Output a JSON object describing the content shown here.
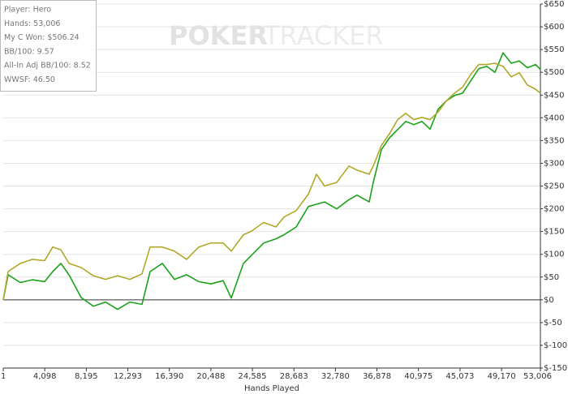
{
  "chart_data": {
    "type": "line",
    "x_label": "Hands Played",
    "watermark_left": "POKER",
    "watermark_right": "TRACKER",
    "info": [
      "Player: Hero",
      "Hands: 53,006",
      "My C Won: $506.24",
      "BB/100: 9.57",
      "All-In Adj BB/100: 8.52",
      "WWSF: 46.50"
    ],
    "x": [
      1,
      481,
      1682,
      2884,
      4085,
      4885,
      5686,
      6487,
      7688,
      8889,
      10090,
      11291,
      12492,
      13693,
      14494,
      15695,
      16896,
      18097,
      19298,
      20499,
      21700,
      22501,
      23702,
      24503,
      25704,
      26905,
      27705,
      28906,
      30107,
      30908,
      31709,
      32910,
      34111,
      34912,
      36113,
      36513,
      37314,
      38115,
      38916,
      39716,
      40517,
      41318,
      42119,
      42919,
      43720,
      44521,
      45322,
      46122,
      46923,
      47724,
      48524,
      49325,
      50126,
      50927,
      51727,
      52528,
      53006
    ],
    "series": [
      {
        "color": "#1aa31a",
        "values": [
          0,
          55,
          38,
          44,
          40,
          62,
          80,
          55,
          5,
          -14,
          -5,
          -21,
          -5,
          -10,
          62,
          80,
          45,
          55,
          40,
          35,
          42,
          4,
          80,
          98,
          125,
          134,
          143,
          160,
          205,
          210,
          215,
          200,
          220,
          230,
          215,
          258,
          330,
          356,
          374,
          392,
          385,
          392,
          375,
          419,
          437,
          449,
          454,
          481,
          508,
          513,
          500,
          543,
          520,
          525,
          510,
          517,
          506.24
        ]
      },
      {
        "color": "#b0a828",
        "values": [
          0,
          62,
          80,
          89,
          86,
          116,
          110,
          80,
          71,
          53,
          45,
          53,
          45,
          57,
          116,
          116,
          107,
          89,
          116,
          125,
          125,
          107,
          143,
          151,
          170,
          160,
          182,
          196,
          232,
          276,
          250,
          258,
          294,
          285,
          276,
          294,
          339,
          365,
          396,
          410,
          396,
          401,
          396,
          413,
          437,
          454,
          467,
          495,
          517,
          517,
          520,
          513,
          490,
          499,
          472,
          463,
          454
        ]
      }
    ],
    "xlim": [
      1,
      53006
    ],
    "xticks": [
      1,
      {
        "value": 4098,
        "label": "4,098"
      },
      {
        "value": 8195,
        "label": "8,195"
      },
      {
        "value": 12293,
        "label": "12,293"
      },
      {
        "value": 16390,
        "label": "16,390"
      },
      {
        "value": 20488,
        "label": "20,488"
      },
      {
        "value": 24585,
        "label": "24,585"
      },
      {
        "value": 28683,
        "label": "28,683"
      },
      {
        "value": 32780,
        "label": "32,780"
      },
      {
        "value": 36878,
        "label": "36,878"
      },
      {
        "value": 40975,
        "label": "40,975"
      },
      {
        "value": 45073,
        "label": "45,073"
      },
      {
        "value": 49170,
        "label": "49,170"
      },
      {
        "value": 53006,
        "label": "53,006"
      }
    ],
    "ylim": [
      -150,
      650
    ],
    "yticks": [
      {
        "value": -150,
        "label": "$-150"
      },
      {
        "value": -100,
        "label": "$-100"
      },
      {
        "value": -50,
        "label": "$-50"
      },
      {
        "value": 0,
        "label": "$0"
      },
      {
        "value": 50,
        "label": "$50"
      },
      {
        "value": 100,
        "label": "$100"
      },
      {
        "value": 150,
        "label": "$150"
      },
      {
        "value": 200,
        "label": "$200"
      },
      {
        "value": 250,
        "label": "$250"
      },
      {
        "value": 300,
        "label": "$300"
      },
      {
        "value": 350,
        "label": "$350"
      },
      {
        "value": 400,
        "label": "$400"
      },
      {
        "value": 450,
        "label": "$450"
      },
      {
        "value": 500,
        "label": "$500"
      },
      {
        "value": 550,
        "label": "$550"
      },
      {
        "value": 600,
        "label": "$600"
      },
      {
        "value": 650,
        "label": "$650"
      }
    ],
    "grid": true
  }
}
